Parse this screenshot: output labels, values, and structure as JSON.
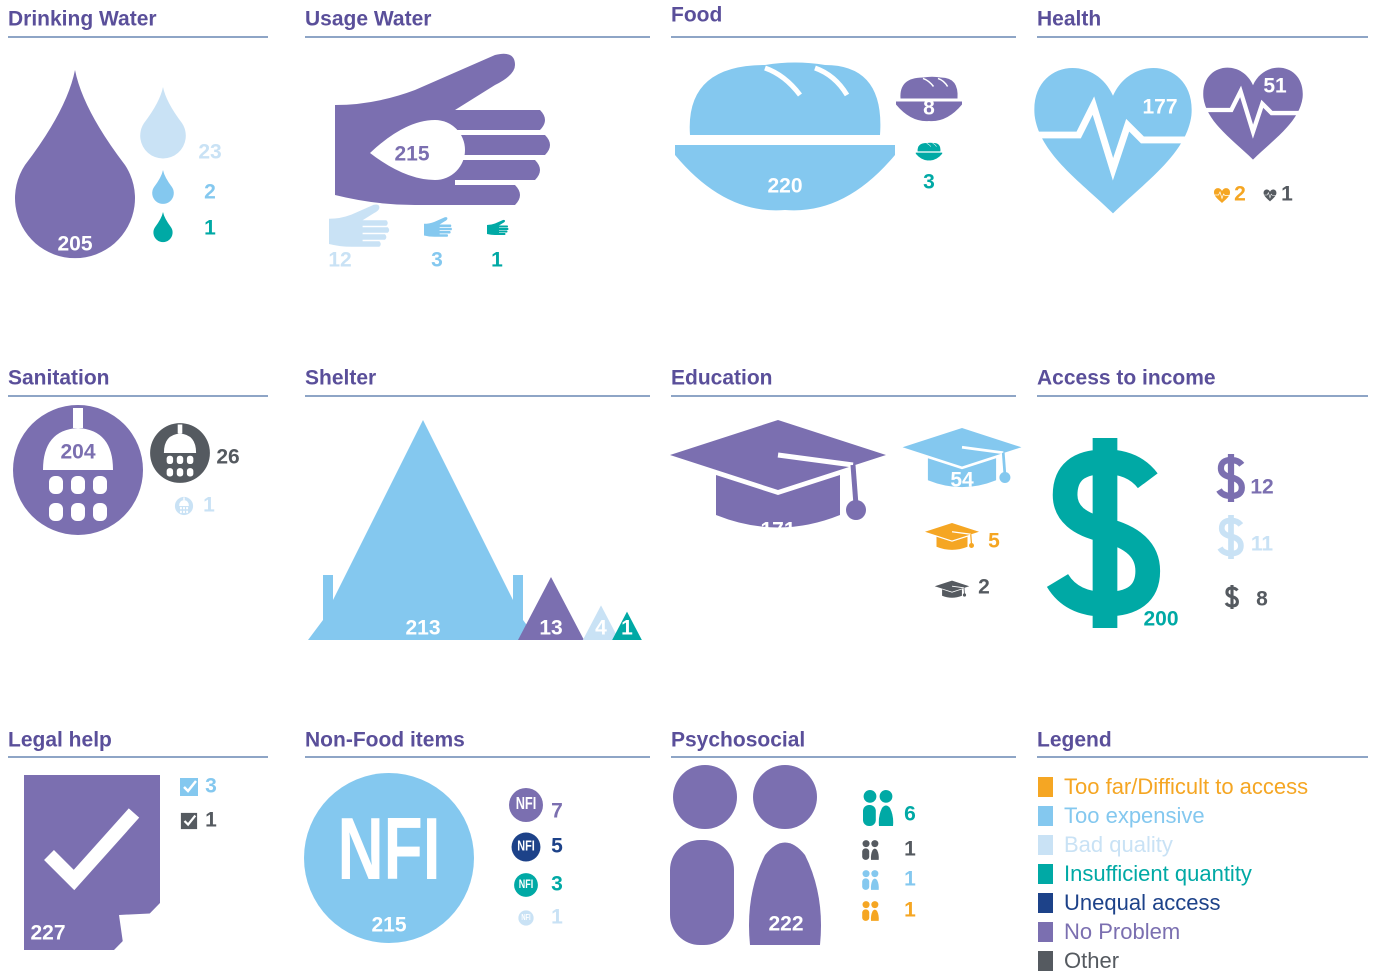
{
  "panels": [
    {
      "title": "Drinking Water",
      "items": [
        {
          "value": 205,
          "color": "#7b6fb0"
        },
        {
          "value": 23,
          "color": "#c9e2f5"
        },
        {
          "value": 2,
          "color": "#84c8ef"
        },
        {
          "value": 1,
          "color": "#00a9a5"
        }
      ]
    },
    {
      "title": "Usage Water",
      "items": [
        {
          "value": 215,
          "color": "#7b6fb0"
        },
        {
          "value": 12,
          "color": "#c9e2f5"
        },
        {
          "value": 3,
          "color": "#84c8ef"
        },
        {
          "value": 1,
          "color": "#00a9a5"
        }
      ]
    },
    {
      "title": "Food",
      "items": [
        {
          "value": 220,
          "color": "#84c8ef"
        },
        {
          "value": 8,
          "color": "#7b6fb0"
        },
        {
          "value": 3,
          "color": "#00a9a5"
        }
      ]
    },
    {
      "title": "Health",
      "items": [
        {
          "value": 177,
          "color": "#84c8ef"
        },
        {
          "value": 51,
          "color": "#7b6fb0"
        },
        {
          "value": 2,
          "color": "#f5a623"
        },
        {
          "value": 1,
          "color": "#555a60"
        }
      ]
    },
    {
      "title": "Sanitation",
      "items": [
        {
          "value": 204,
          "color": "#7b6fb0"
        },
        {
          "value": 26,
          "color": "#555a60"
        },
        {
          "value": 1,
          "color": "#c9e2f5"
        }
      ]
    },
    {
      "title": "Shelter",
      "items": [
        {
          "value": 213,
          "color": "#84c8ef"
        },
        {
          "value": 13,
          "color": "#7b6fb0"
        },
        {
          "value": 4,
          "color": "#c9e2f5"
        },
        {
          "value": 1,
          "color": "#00a9a5"
        }
      ]
    },
    {
      "title": "Education",
      "items": [
        {
          "value": 171,
          "color": "#7b6fb0"
        },
        {
          "value": 54,
          "color": "#84c8ef"
        },
        {
          "value": 5,
          "color": "#f5a623"
        },
        {
          "value": 2,
          "color": "#555a60"
        }
      ]
    },
    {
      "title": "Access to income",
      "items": [
        {
          "value": 200,
          "color": "#00a9a5"
        },
        {
          "value": 12,
          "color": "#7b6fb0"
        },
        {
          "value": 11,
          "color": "#c9e2f5"
        },
        {
          "value": 8,
          "color": "#555a60"
        }
      ]
    },
    {
      "title": "Legal help",
      "items": [
        {
          "value": 227,
          "color": "#7b6fb0"
        },
        {
          "value": 3,
          "color": "#84c8ef"
        },
        {
          "value": 1,
          "color": "#555a60"
        }
      ]
    },
    {
      "title": "Non-Food items",
      "icon_text": "NFI",
      "items": [
        {
          "value": 215,
          "color": "#84c8ef"
        },
        {
          "value": 7,
          "color": "#7b6fb0"
        },
        {
          "value": 5,
          "color": "#1d4289"
        },
        {
          "value": 3,
          "color": "#00a9a5"
        },
        {
          "value": 1,
          "color": "#c9e2f5"
        }
      ]
    },
    {
      "title": "Psychosocial",
      "items": [
        {
          "value": 222,
          "color": "#7b6fb0"
        },
        {
          "value": 6,
          "color": "#00a9a5"
        },
        {
          "value": 1,
          "color": "#555a60"
        },
        {
          "value": 1,
          "color": "#84c8ef"
        },
        {
          "value": 1,
          "color": "#f5a623"
        }
      ]
    }
  ],
  "legend": {
    "title": "Legend",
    "entries": [
      {
        "label": "Too far/Difficult to access",
        "color": "#f5a623"
      },
      {
        "label": "Too expensive",
        "color": "#84c8ef"
      },
      {
        "label": "Bad quality",
        "color": "#c9e2f5"
      },
      {
        "label": "Insufficient quantity",
        "color": "#00a9a5"
      },
      {
        "label": "Unequal access",
        "color": "#1d4289"
      },
      {
        "label": "No Problem",
        "color": "#7b6fb0"
      },
      {
        "label": "Other",
        "color": "#555a60"
      }
    ]
  }
}
